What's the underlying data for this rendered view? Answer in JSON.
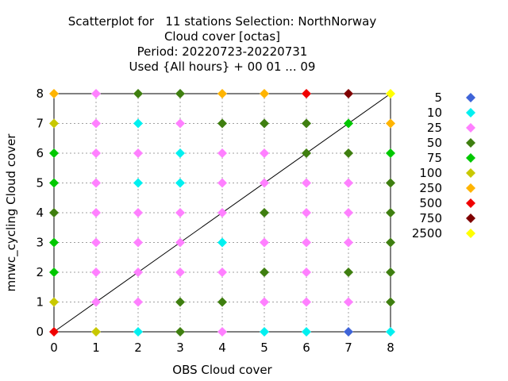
{
  "chart_data": {
    "type": "scatter",
    "title": [
      "Scatterplot for   11 stations Selection: NorthNorway",
      "Cloud cover [octas]",
      "Period: 20220723-20220731",
      "Used {All hours} + 00 01 ... 09"
    ],
    "xlabel": "OBS Cloud cover",
    "ylabel": "mnwc_cycling Cloud cover",
    "xlim": [
      0,
      8
    ],
    "ylim": [
      0,
      8
    ],
    "xticks": [
      "0",
      "1",
      "2",
      "3",
      "4",
      "5",
      "6",
      "7",
      "8"
    ],
    "yticks": [
      "0",
      "1",
      "2",
      "3",
      "4",
      "5",
      "6",
      "7",
      "8"
    ],
    "grid": true,
    "diagonal": true,
    "legend_position": "right",
    "legend": [
      {
        "label": "5",
        "color": "#3f64d8"
      },
      {
        "label": "10",
        "color": "#00f0f0"
      },
      {
        "label": "25",
        "color": "#ff80ff"
      },
      {
        "label": "50",
        "color": "#3f7f10"
      },
      {
        "label": "75",
        "color": "#00c800"
      },
      {
        "label": "100",
        "color": "#c8c800"
      },
      {
        "label": "250",
        "color": "#ffb400"
      },
      {
        "label": "500",
        "color": "#f00000"
      },
      {
        "label": "750",
        "color": "#7f0000"
      },
      {
        "label": "2500",
        "color": "#ffff00"
      }
    ],
    "points": [
      [
        0,
        8,
        "250"
      ],
      [
        1,
        8,
        "25"
      ],
      [
        2,
        8,
        "50"
      ],
      [
        3,
        8,
        "50"
      ],
      [
        4,
        8,
        "250"
      ],
      [
        5,
        8,
        "250"
      ],
      [
        6,
        8,
        "500"
      ],
      [
        7,
        8,
        "750"
      ],
      [
        8,
        8,
        "2500"
      ],
      [
        0,
        7,
        "100"
      ],
      [
        1,
        7,
        "25"
      ],
      [
        2,
        7,
        "10"
      ],
      [
        3,
        7,
        "25"
      ],
      [
        4,
        7,
        "50"
      ],
      [
        5,
        7,
        "50"
      ],
      [
        6,
        7,
        "50"
      ],
      [
        7,
        7,
        "75"
      ],
      [
        8,
        7,
        "250"
      ],
      [
        0,
        6,
        "75"
      ],
      [
        1,
        6,
        "25"
      ],
      [
        2,
        6,
        "25"
      ],
      [
        3,
        6,
        "10"
      ],
      [
        4,
        6,
        "25"
      ],
      [
        5,
        6,
        "25"
      ],
      [
        6,
        6,
        "50"
      ],
      [
        7,
        6,
        "50"
      ],
      [
        8,
        6,
        "75"
      ],
      [
        0,
        5,
        "75"
      ],
      [
        1,
        5,
        "25"
      ],
      [
        2,
        5,
        "10"
      ],
      [
        3,
        5,
        "10"
      ],
      [
        4,
        5,
        "25"
      ],
      [
        5,
        5,
        "25"
      ],
      [
        6,
        5,
        "25"
      ],
      [
        7,
        5,
        "25"
      ],
      [
        8,
        5,
        "50"
      ],
      [
        0,
        4,
        "50"
      ],
      [
        1,
        4,
        "25"
      ],
      [
        2,
        4,
        "25"
      ],
      [
        3,
        4,
        "25"
      ],
      [
        4,
        4,
        "25"
      ],
      [
        5,
        4,
        "50"
      ],
      [
        6,
        4,
        "25"
      ],
      [
        7,
        4,
        "25"
      ],
      [
        8,
        4,
        "50"
      ],
      [
        0,
        3,
        "75"
      ],
      [
        1,
        3,
        "25"
      ],
      [
        2,
        3,
        "25"
      ],
      [
        3,
        3,
        "25"
      ],
      [
        4,
        3,
        "10"
      ],
      [
        5,
        3,
        "25"
      ],
      [
        6,
        3,
        "25"
      ],
      [
        7,
        3,
        "25"
      ],
      [
        8,
        3,
        "50"
      ],
      [
        0,
        2,
        "75"
      ],
      [
        1,
        2,
        "25"
      ],
      [
        2,
        2,
        "25"
      ],
      [
        3,
        2,
        "25"
      ],
      [
        4,
        2,
        "25"
      ],
      [
        5,
        2,
        "50"
      ],
      [
        6,
        2,
        "25"
      ],
      [
        7,
        2,
        "50"
      ],
      [
        8,
        2,
        "50"
      ],
      [
        0,
        1,
        "100"
      ],
      [
        1,
        1,
        "25"
      ],
      [
        2,
        1,
        "25"
      ],
      [
        3,
        1,
        "50"
      ],
      [
        4,
        1,
        "50"
      ],
      [
        5,
        1,
        "25"
      ],
      [
        6,
        1,
        "25"
      ],
      [
        7,
        1,
        "25"
      ],
      [
        8,
        1,
        "50"
      ],
      [
        0,
        0,
        "500"
      ],
      [
        1,
        0,
        "100"
      ],
      [
        2,
        0,
        "10"
      ],
      [
        3,
        0,
        "50"
      ],
      [
        4,
        0,
        "25"
      ],
      [
        5,
        0,
        "10"
      ],
      [
        6,
        0,
        "10"
      ],
      [
        7,
        0,
        "5"
      ],
      [
        8,
        0,
        "10"
      ]
    ]
  }
}
